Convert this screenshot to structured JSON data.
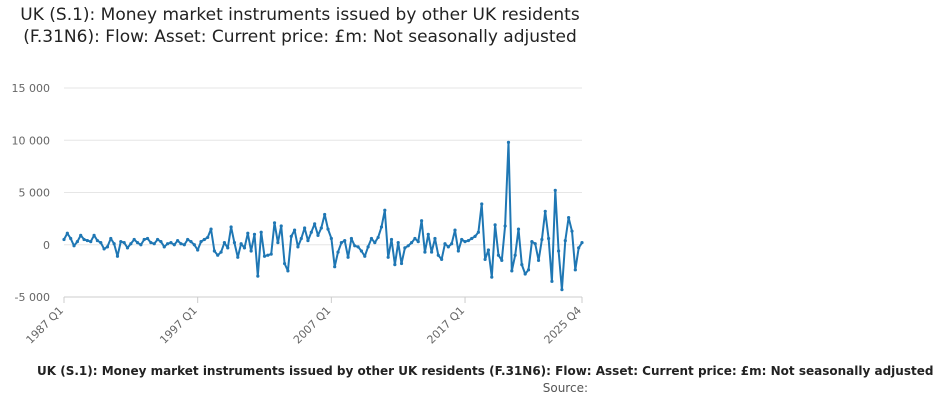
{
  "chart_data": {
    "type": "line",
    "title": "UK (S.1): Money market instruments issued by other UK residents (F.31N6): Flow: Asset: Current price: £m: Not seasonally adjusted",
    "legend_label": "UK (S.1): Money market instruments issued by other UK residents (F.31N6): Flow: Asset: Current price: £m: Not seasonally adjusted",
    "source_label": "Source:",
    "ylim": [
      -5000,
      15000
    ],
    "y_ticks": [
      15000,
      10000,
      5000,
      0,
      -5000
    ],
    "y_tick_labels": [
      "15 000",
      "10 000",
      "5 000",
      "0",
      "-5 000"
    ],
    "x_tick_labels": [
      "1987 Q1",
      "1997 Q1",
      "2007 Q1",
      "2017 Q1",
      "2025 Q4"
    ],
    "x_tick_index": [
      0,
      40,
      80,
      120,
      155
    ],
    "grid": true,
    "line_color": "#1f77b4",
    "series": [
      {
        "values": [
          500,
          1100,
          600,
          -100,
          300,
          900,
          500,
          400,
          300,
          900,
          400,
          200,
          -400,
          -200,
          600,
          100,
          -1100,
          300,
          200,
          -300,
          100,
          500,
          200,
          0,
          500,
          600,
          200,
          100,
          500,
          300,
          -200,
          100,
          200,
          0,
          400,
          100,
          0,
          500,
          300,
          0,
          -500,
          300,
          500,
          700,
          1500,
          -600,
          -1000,
          -700,
          200,
          -300,
          1700,
          200,
          -1200,
          100,
          -300,
          1100,
          -600,
          1000,
          -3000,
          1200,
          -1100,
          -1000,
          -900,
          2100,
          200,
          1800,
          -1800,
          -2500,
          800,
          1400,
          -200,
          600,
          1600,
          400,
          1200,
          2000,
          900,
          1600,
          2900,
          1500,
          600,
          -2100,
          -700,
          200,
          400,
          -1200,
          600,
          -100,
          -200,
          -600,
          -1100,
          -200,
          600,
          200,
          700,
          1700,
          3300,
          -1200,
          500,
          -1900,
          200,
          -1800,
          -300,
          -100,
          200,
          600,
          300,
          2300,
          -700,
          1000,
          -700,
          600,
          -1000,
          -1400,
          100,
          -200,
          100,
          1400,
          -600,
          500,
          300,
          400,
          600,
          800,
          1200,
          3900,
          -1400,
          -500,
          -3100,
          1900,
          -1000,
          -1500,
          1800,
          9800,
          -2500,
          -1000,
          1500,
          -1900,
          -2800,
          -2400,
          300,
          100,
          -1500,
          500,
          3200,
          600,
          -3500,
          5200,
          -600,
          -4300,
          400,
          2600,
          1300,
          -2400,
          -300,
          200
        ]
      }
    ]
  }
}
